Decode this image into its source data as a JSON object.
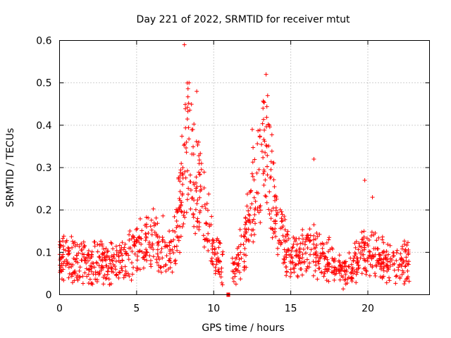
{
  "chart_data": {
    "type": "scatter",
    "title": "Day 221 of 2022, SRMTID for receiver mtut",
    "xlabel": "GPS time / hours",
    "ylabel": "SRMTID / TECUs",
    "xlim": [
      0,
      24
    ],
    "ylim": [
      0,
      0.6
    ],
    "xticks": [
      "0",
      "5",
      "10",
      "15",
      "20"
    ],
    "xtick_values": [
      0,
      5,
      10,
      15,
      20
    ],
    "yticks": [
      "0",
      "0.1",
      "0.2",
      "0.3",
      "0.4",
      "0.5",
      "0.6"
    ],
    "ytick_values": [
      0,
      0.1,
      0.2,
      0.3,
      0.4,
      0.5,
      0.6
    ],
    "grid": true,
    "marker": "+",
    "color": "#ff0000",
    "series": [
      {
        "name": "SRMTID",
        "envelope_description": "approximate mean level by hour",
        "x": [
          0,
          0.5,
          1,
          1.5,
          2,
          2.5,
          3,
          3.5,
          4,
          4.5,
          5,
          5.5,
          6,
          6.5,
          7,
          7.5,
          8,
          8.3,
          8.6,
          9,
          9.5,
          10,
          10.5,
          11,
          11.5,
          12,
          12.5,
          13,
          13.3,
          13.6,
          14,
          14.5,
          15,
          15.5,
          16,
          16.5,
          17,
          17.5,
          18,
          18.5,
          19,
          19.5,
          20,
          20.5,
          21,
          21.5,
          22,
          22.7
        ],
        "y": [
          0.08,
          0.09,
          0.08,
          0.08,
          0.07,
          0.08,
          0.08,
          0.07,
          0.08,
          0.09,
          0.11,
          0.12,
          0.14,
          0.13,
          0.1,
          0.12,
          0.28,
          0.35,
          0.3,
          0.25,
          0.18,
          0.12,
          0.08,
          0.04,
          0.08,
          0.12,
          0.22,
          0.28,
          0.33,
          0.3,
          0.18,
          0.12,
          0.1,
          0.09,
          0.11,
          0.1,
          0.09,
          0.08,
          0.06,
          0.05,
          0.06,
          0.09,
          0.1,
          0.09,
          0.08,
          0.08,
          0.07,
          0.08
        ]
      }
    ],
    "peaks": [
      {
        "x": 8.1,
        "y": 0.59
      },
      {
        "x": 8.4,
        "y": 0.5
      },
      {
        "x": 8.9,
        "y": 0.48
      },
      {
        "x": 13.4,
        "y": 0.52
      },
      {
        "x": 13.2,
        "y": 0.44
      },
      {
        "x": 13.5,
        "y": 0.47
      },
      {
        "x": 12.5,
        "y": 0.39
      },
      {
        "x": 16.5,
        "y": 0.32
      },
      {
        "x": 19.8,
        "y": 0.27
      },
      {
        "x": 20.3,
        "y": 0.23
      }
    ]
  }
}
